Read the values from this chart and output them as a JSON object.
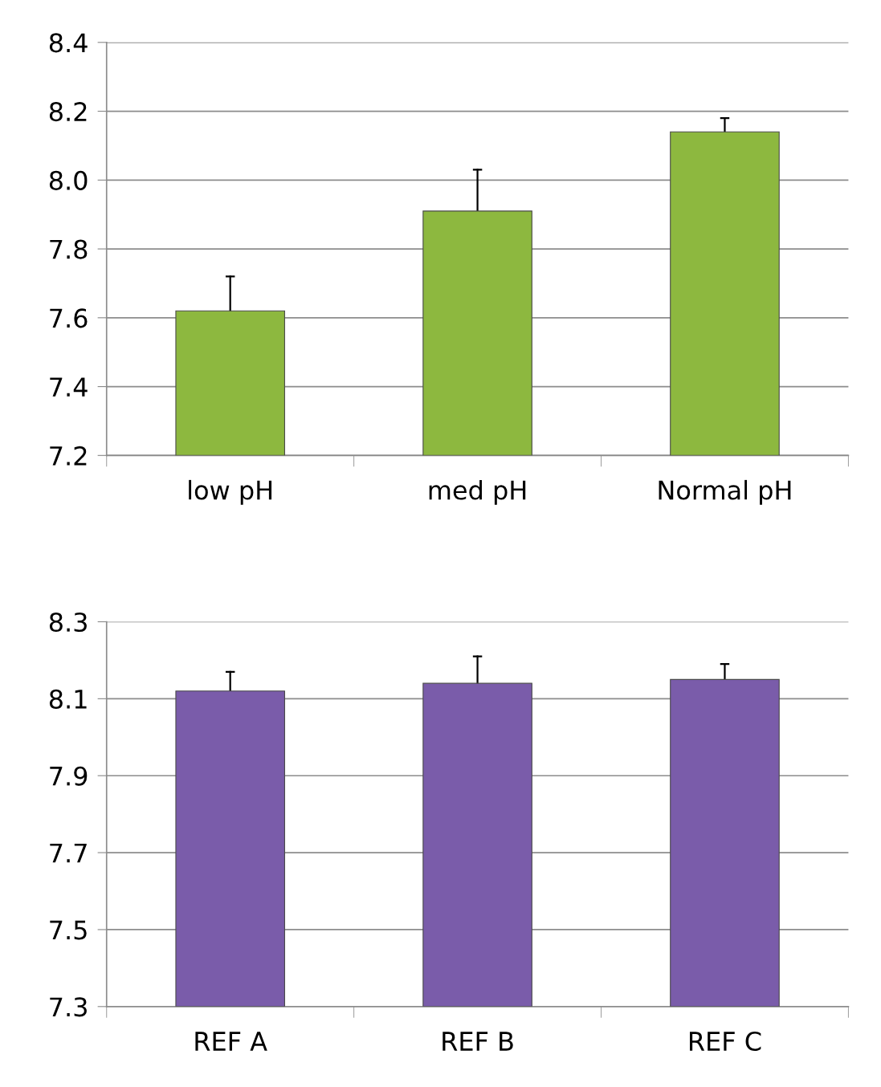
{
  "chart_data": [
    {
      "type": "bar",
      "categories": [
        "low pH",
        "med pH",
        "Normal pH"
      ],
      "values": [
        7.62,
        7.91,
        8.14
      ],
      "errors": [
        [
          7.62,
          7.72
        ],
        [
          7.91,
          8.03
        ],
        [
          8.14,
          8.18
        ]
      ],
      "color": "#8db83f",
      "ylim": [
        7.2,
        8.4
      ],
      "yticks": [
        7.2,
        7.4,
        7.6,
        7.8,
        {
          "value": 8,
          "label": "8.0"
        },
        8.2,
        8.4
      ],
      "grid": "y"
    },
    {
      "type": "bar",
      "categories": [
        "REF A",
        "REF B",
        "REF C"
      ],
      "values": [
        8.12,
        8.14,
        8.15
      ],
      "errors": [
        [
          8.12,
          8.17
        ],
        [
          8.14,
          8.21
        ],
        [
          8.15,
          8.19
        ]
      ],
      "color": "#7a5caa",
      "ylim": [
        7.3,
        8.3
      ],
      "yticks": [
        7.3,
        7.5,
        7.7,
        7.9,
        8.1,
        8.3
      ],
      "grid": "y"
    }
  ]
}
